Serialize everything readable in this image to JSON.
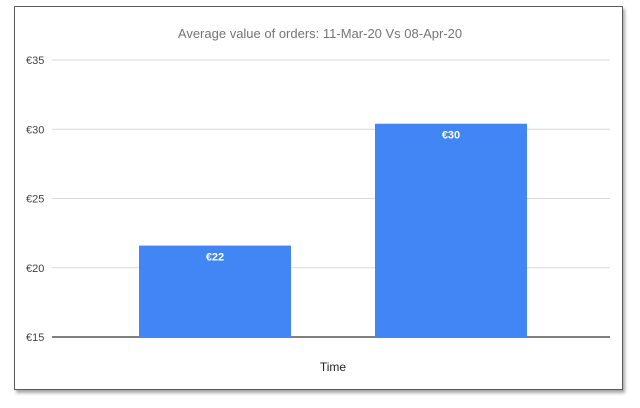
{
  "chart_data": {
    "type": "bar",
    "title": "Average value of orders: 11-Mar-20 Vs 08-Apr-20",
    "xlabel": "Time",
    "ylabel": "",
    "categories": [
      "",
      ""
    ],
    "values": [
      21.6,
      30.4
    ],
    "data_labels": [
      "€22",
      "€30"
    ],
    "ylim": [
      15,
      35
    ],
    "yticks": [
      15,
      20,
      25,
      30,
      35
    ],
    "ytick_labels": [
      "€15",
      "€20",
      "€25",
      "€30",
      "€35"
    ],
    "grid": true,
    "legend": "none",
    "bar_color": "#4285f4"
  }
}
